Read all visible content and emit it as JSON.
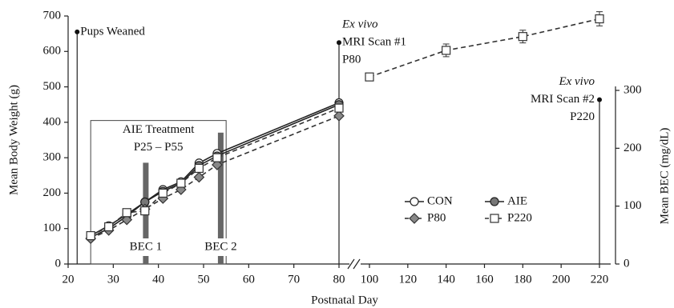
{
  "chart_data": {
    "type": "line",
    "x_label": "Postnatal Day",
    "y_label": "Mean Body Weight (g)",
    "y2_label": "Mean BEC (mg/dL)",
    "xlim": [
      20,
      220
    ],
    "axis_break": [
      80,
      100
    ],
    "xticks": [
      20,
      30,
      40,
      50,
      60,
      70,
      80,
      100,
      120,
      140,
      160,
      180,
      200,
      220
    ],
    "ylim": [
      0,
      700
    ],
    "yticks": [
      0,
      100,
      200,
      300,
      400,
      500,
      600,
      700
    ],
    "y2lim": [
      0,
      300
    ],
    "y2ticks": [
      0,
      100,
      200,
      300
    ],
    "legend": "lower right",
    "x": [
      25,
      29,
      33,
      37,
      41,
      45,
      49,
      53,
      80,
      100,
      140,
      180,
      220
    ],
    "series": [
      {
        "name": "CON",
        "color": "#222",
        "fill": "#fff",
        "marker": "circle",
        "linestyle": "solid",
        "values": [
          80,
          108,
          140,
          175,
          210,
          232,
          285,
          312,
          455,
          null,
          null,
          null,
          null
        ]
      },
      {
        "name": "AIE",
        "color": "#222",
        "fill": "#777",
        "marker": "circle",
        "linestyle": "solid",
        "values": [
          75,
          100,
          135,
          175,
          205,
          228,
          278,
          305,
          450,
          null,
          null,
          null,
          null
        ]
      },
      {
        "name": "P80",
        "color": "#333",
        "fill": "#888",
        "marker": "diamond",
        "linestyle": "dashed",
        "values": [
          72,
          95,
          125,
          155,
          185,
          210,
          245,
          280,
          418,
          null,
          null,
          null,
          null
        ]
      },
      {
        "name": "P220",
        "color": "#333",
        "fill": "#fff",
        "marker": "square",
        "linestyle": "dashed",
        "values": [
          80,
          105,
          145,
          150,
          200,
          228,
          270,
          300,
          440,
          528,
          603,
          642,
          692
        ],
        "errors": [
          null,
          null,
          null,
          null,
          null,
          null,
          null,
          null,
          null,
          10,
          18,
          18,
          20
        ]
      }
    ],
    "bars": {
      "axis": "y2",
      "color": "#666",
      "x": [
        37.2,
        53.8
      ],
      "values": [
        175,
        227
      ],
      "labels": [
        "BEC 1",
        "BEC 2"
      ]
    },
    "treatment": {
      "x": [
        25,
        55
      ],
      "top": 405,
      "lines": [
        "AIE Treatment",
        "P25 – P55"
      ]
    },
    "annotations": [
      {
        "x": 22,
        "y": 655,
        "axis": "y",
        "lines": [
          "Pups Weaned"
        ]
      },
      {
        "x": 80,
        "y": 625,
        "axis": "y",
        "lines": [
          "Ex vivo",
          "MRI Scan #1",
          "P80"
        ]
      },
      {
        "x": 220,
        "y": 284,
        "axis": "y2",
        "lines": [
          "Ex vivo",
          "MRI Scan #2",
          "P220"
        ]
      }
    ]
  }
}
